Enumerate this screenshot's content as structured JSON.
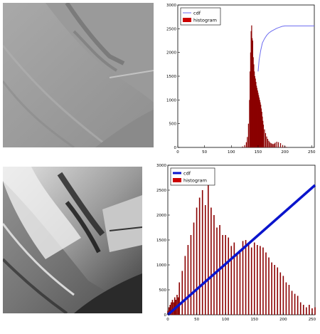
{
  "chart_data": [
    {
      "type": "bar",
      "ylim": [
        0,
        3000
      ],
      "xlim": [
        0,
        255
      ],
      "xticks": [
        "0",
        "50",
        "100",
        "150",
        "200",
        "250"
      ],
      "yticks": [
        "0",
        "500",
        "1000",
        "1500",
        "2000",
        "2500",
        "3000"
      ],
      "legend_position": "top-left",
      "series": [
        {
          "name": "cdf",
          "kind": "line",
          "color": "#6b6bf0",
          "x": [
            150,
            152,
            155,
            158,
            162,
            166,
            170,
            175,
            180,
            185,
            190,
            195,
            200,
            255
          ],
          "y": [
            1600,
            1850,
            2050,
            2200,
            2290,
            2360,
            2410,
            2450,
            2480,
            2510,
            2530,
            2550,
            2560,
            2560
          ]
        },
        {
          "name": "histogram",
          "kind": "bar",
          "color": "#8b0000",
          "x": [
            121,
            125,
            128,
            130,
            132,
            134,
            135,
            136,
            137,
            138,
            139,
            140,
            141,
            142,
            143,
            144,
            145,
            146,
            147,
            148,
            149,
            150,
            151,
            152,
            153,
            154,
            155,
            156,
            157,
            158,
            159,
            160,
            162,
            164,
            166,
            168,
            170,
            172,
            174,
            176,
            178,
            180,
            182,
            185,
            188,
            192,
            196,
            200,
            203
          ],
          "y": [
            20,
            50,
            110,
            220,
            500,
            1000,
            1600,
            2000,
            2450,
            2570,
            2300,
            2250,
            1900,
            1750,
            1600,
            1500,
            1450,
            1380,
            1300,
            1250,
            1200,
            1150,
            1100,
            1050,
            1000,
            950,
            900,
            820,
            750,
            650,
            560,
            480,
            380,
            300,
            230,
            180,
            140,
            110,
            90,
            80,
            70,
            80,
            100,
            120,
            110,
            90,
            50,
            30,
            10
          ]
        }
      ]
    },
    {
      "type": "bar",
      "ylim": [
        0,
        3000
      ],
      "xlim": [
        0,
        255
      ],
      "xticks": [
        "0",
        "50",
        "100",
        "150",
        "200",
        "250"
      ],
      "yticks": [
        "0",
        "500",
        "1000",
        "1500",
        "2000",
        "2500",
        "3000"
      ],
      "legend_position": "top-left",
      "series": [
        {
          "name": "cdf",
          "kind": "line",
          "color": "#0a14cc",
          "x": [
            0,
            255
          ],
          "y": [
            0,
            2600
          ]
        },
        {
          "name": "histogram",
          "kind": "bar",
          "color": "#8b0000",
          "x": [
            0,
            2,
            4,
            6,
            8,
            10,
            12,
            14,
            16,
            18,
            20,
            25,
            30,
            35,
            40,
            45,
            50,
            55,
            60,
            65,
            70,
            75,
            80,
            85,
            90,
            95,
            100,
            105,
            110,
            115,
            120,
            125,
            130,
            135,
            140,
            145,
            150,
            155,
            160,
            165,
            170,
            175,
            180,
            185,
            190,
            195,
            200,
            205,
            210,
            215,
            220,
            225,
            230,
            235,
            240,
            245,
            250,
            255
          ],
          "y": [
            80,
            150,
            200,
            250,
            300,
            250,
            350,
            300,
            400,
            350,
            650,
            880,
            1180,
            1400,
            1600,
            1850,
            2150,
            2350,
            2500,
            2200,
            2600,
            2150,
            2000,
            1750,
            1800,
            1600,
            1600,
            1550,
            1380,
            1450,
            1200,
            1300,
            1480,
            1500,
            1450,
            1350,
            1450,
            1400,
            1380,
            1350,
            1250,
            1150,
            1050,
            1000,
            950,
            850,
            780,
            650,
            600,
            480,
            420,
            380,
            250,
            200,
            150,
            200,
            130,
            150
          ]
        }
      ]
    }
  ]
}
